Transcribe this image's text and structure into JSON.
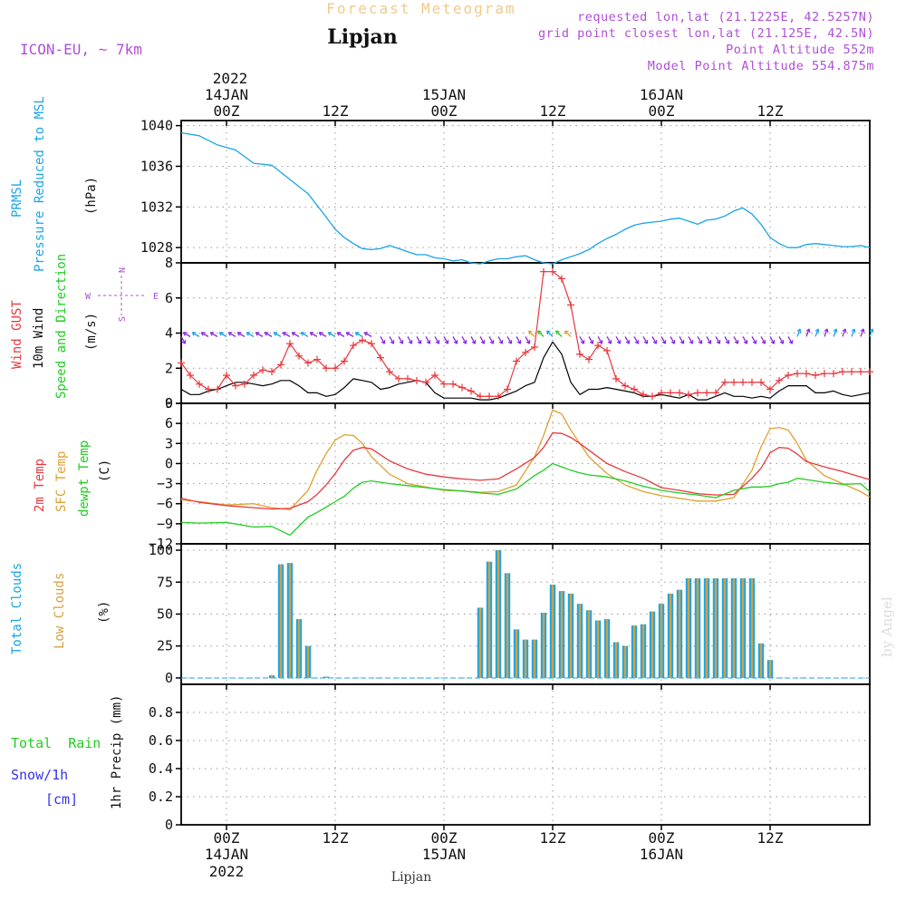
{
  "header": {
    "subtitle": "Forecast Meteogram",
    "station": "Lipjan",
    "model": "ICON-EU, ~ 7km",
    "requested": "requested lon,lat (21.1225E, 42.5257N)",
    "grid_point": "grid point closest lon,lat (21.125E, 42.5N)",
    "point_alt": "Point Altitude 552m",
    "model_alt": "Model Point Altitude 554.875m",
    "footer_station": "Lipjan",
    "watermark": "by Angel"
  },
  "colors": {
    "pressure": "#1aa5e6",
    "gust": "#e8383d",
    "wind": "#000000",
    "barbs_green": "#22cc22",
    "barbs_purple": "#8a2be2",
    "temp2m": "#e8383d",
    "sfc": "#e0a030",
    "dewpt": "#22cc22",
    "total_clouds": "#1aa5e6",
    "low_clouds": "#d4a040",
    "rain": "#22cc22",
    "snow": "#3333ee",
    "dir": "#b04fd8"
  },
  "time_axis": {
    "top_year": "2022",
    "bottom_year": "2022",
    "ticks": [
      {
        "t": 0,
        "label": "00Z",
        "date": "14JAN"
      },
      {
        "t": 12,
        "label": "12Z",
        "date": ""
      },
      {
        "t": 24,
        "label": "00Z",
        "date": "15JAN"
      },
      {
        "t": 36,
        "label": "12Z",
        "date": ""
      },
      {
        "t": 48,
        "label": "00Z",
        "date": "16JAN"
      },
      {
        "t": 60,
        "label": "12Z",
        "date": ""
      }
    ],
    "range_hours": [
      -5,
      71
    ]
  },
  "chart_data": [
    {
      "type": "line",
      "title": "PRMSL Pressure Reduced to MSL",
      "ylabel": "(hPa)",
      "ylim": [
        1026.5,
        1040.5
      ],
      "yticks": [
        1028,
        1032,
        1036,
        1040
      ],
      "series": [
        {
          "name": "PRMSL",
          "x": [
            -5,
            -3,
            -1,
            1,
            3,
            5,
            7,
            9,
            11,
            12,
            13,
            14,
            15,
            16,
            17,
            18,
            19,
            20,
            21,
            22,
            23,
            24,
            25,
            26,
            27,
            28,
            29,
            30,
            31,
            32,
            33,
            34,
            35,
            36,
            37,
            38,
            39,
            40,
            41,
            42,
            43,
            44,
            45,
            46,
            47,
            48,
            49,
            50,
            51,
            52,
            53,
            54,
            55,
            56,
            57,
            58,
            59,
            60,
            61,
            62,
            63,
            64,
            65,
            66,
            67,
            68,
            69,
            70,
            71
          ],
          "values": [
            1039.3,
            1039.0,
            1038.1,
            1037.6,
            1036.3,
            1036.1,
            1034.7,
            1033.3,
            1031.0,
            1029.8,
            1029.0,
            1028.4,
            1027.9,
            1027.8,
            1027.9,
            1028.2,
            1027.9,
            1027.6,
            1027.3,
            1027.3,
            1027.0,
            1026.9,
            1026.7,
            1026.8,
            1026.5,
            1026.4,
            1026.7,
            1026.9,
            1026.9,
            1027.1,
            1027.2,
            1026.8,
            1026.5,
            1026.4,
            1026.8,
            1027.1,
            1027.4,
            1027.8,
            1028.4,
            1028.9,
            1029.3,
            1029.8,
            1030.2,
            1030.4,
            1030.5,
            1030.6,
            1030.8,
            1030.9,
            1030.6,
            1030.3,
            1030.7,
            1030.8,
            1031.1,
            1031.6,
            1031.9,
            1031.3,
            1030.3,
            1029.0,
            1028.4,
            1028.0,
            1028.0,
            1028.3,
            1028.4,
            1028.3,
            1028.2,
            1028.1,
            1028.1,
            1028.2,
            1028.0
          ]
        }
      ]
    },
    {
      "type": "line",
      "title": "Wind GUST / 10m Wind Speed and Direction",
      "ylabel": "(m/s)",
      "ylim": [
        0,
        8
      ],
      "yticks": [
        0,
        2,
        4,
        6,
        8
      ],
      "compass": {
        "n": "N",
        "s": "S",
        "w": "W",
        "e": "E"
      },
      "series": [
        {
          "name": "Wind GUST",
          "x": [
            -5,
            -4,
            -3,
            -2,
            -1,
            0,
            1,
            2,
            3,
            4,
            5,
            6,
            7,
            8,
            9,
            10,
            11,
            12,
            13,
            14,
            15,
            16,
            17,
            18,
            19,
            20,
            21,
            22,
            23,
            24,
            25,
            26,
            27,
            28,
            29,
            30,
            31,
            32,
            33,
            34,
            35,
            36,
            37,
            38,
            39,
            40,
            41,
            42,
            43,
            44,
            45,
            46,
            47,
            48,
            49,
            50,
            51,
            52,
            53,
            54,
            55,
            56,
            57,
            58,
            59,
            60,
            61,
            62,
            63,
            64,
            65,
            66,
            67,
            68,
            69,
            70,
            71
          ],
          "values": [
            2.3,
            1.6,
            1.1,
            0.8,
            0.8,
            1.6,
            1.0,
            1.1,
            1.6,
            1.9,
            1.8,
            2.2,
            3.4,
            2.7,
            2.3,
            2.5,
            2.0,
            2.0,
            2.4,
            3.3,
            3.6,
            3.4,
            2.6,
            1.8,
            1.4,
            1.4,
            1.3,
            1.2,
            1.6,
            1.1,
            1.1,
            0.9,
            0.7,
            0.4,
            0.4,
            0.4,
            0.8,
            2.4,
            2.9,
            3.2,
            7.5,
            7.5,
            7.1,
            5.6,
            2.8,
            2.5,
            3.3,
            3.0,
            1.4,
            1.0,
            0.8,
            0.5,
            0.4,
            0.6,
            0.6,
            0.6,
            0.5,
            0.6,
            0.6,
            0.6,
            1.2,
            1.2,
            1.2,
            1.2,
            1.2,
            0.8,
            1.3,
            1.6,
            1.7,
            1.7,
            1.6,
            1.7,
            1.7,
            1.8,
            1.8,
            1.8,
            1.8
          ]
        },
        {
          "name": "10m Wind",
          "x": [
            -5,
            -4,
            -3,
            -2,
            -1,
            0,
            1,
            2,
            3,
            4,
            5,
            6,
            7,
            8,
            9,
            10,
            11,
            12,
            13,
            14,
            15,
            16,
            17,
            18,
            19,
            20,
            21,
            22,
            23,
            24,
            25,
            26,
            27,
            28,
            29,
            30,
            31,
            32,
            33,
            34,
            35,
            36,
            37,
            38,
            39,
            40,
            41,
            42,
            43,
            44,
            45,
            46,
            47,
            48,
            49,
            50,
            51,
            52,
            53,
            54,
            55,
            56,
            57,
            58,
            59,
            60,
            61,
            62,
            63,
            64,
            65,
            66,
            67,
            68,
            69,
            70,
            71
          ],
          "values": [
            0.8,
            0.5,
            0.5,
            0.7,
            0.8,
            1.0,
            1.2,
            1.2,
            1.1,
            1.0,
            1.1,
            1.3,
            1.3,
            1.0,
            0.6,
            0.6,
            0.4,
            0.5,
            0.9,
            1.4,
            1.3,
            1.2,
            0.8,
            0.9,
            1.1,
            1.2,
            1.3,
            1.2,
            0.6,
            0.3,
            0.3,
            0.3,
            0.3,
            0.2,
            0.2,
            0.3,
            0.5,
            0.7,
            1.0,
            1.2,
            2.6,
            3.5,
            2.8,
            1.2,
            0.5,
            0.8,
            0.8,
            0.9,
            0.8,
            0.7,
            0.6,
            0.4,
            0.4,
            0.5,
            0.4,
            0.3,
            0.5,
            0.2,
            0.2,
            0.4,
            0.6,
            0.4,
            0.4,
            0.3,
            0.4,
            0.3,
            0.7,
            1.0,
            1.0,
            1.0,
            0.6,
            0.6,
            0.7,
            0.5,
            0.4,
            0.5,
            0.6
          ]
        }
      ],
      "barbs_y": 3.8
    },
    {
      "type": "line",
      "title": "2m Temp / SFC Temp / dewpt Temp",
      "ylabel": "(C)",
      "ylim": [
        -12,
        9
      ],
      "yticks": [
        -12,
        -9,
        -6,
        -3,
        0,
        3,
        6,
        9
      ],
      "series": [
        {
          "name": "2m Temp",
          "x": [
            -5,
            -3,
            0,
            3,
            5,
            7,
            9,
            10,
            11,
            12,
            13,
            14,
            15,
            16,
            18,
            20,
            22,
            24,
            26,
            28,
            30,
            32,
            34,
            35,
            36,
            37,
            38,
            39,
            40,
            42,
            44,
            46,
            48,
            50,
            52,
            54,
            56,
            58,
            59,
            60,
            61,
            62,
            63,
            64,
            66,
            68,
            70,
            71
          ],
          "values": [
            -5.2,
            -5.8,
            -6.3,
            -6.6,
            -6.8,
            -6.7,
            -5.7,
            -4.6,
            -3.2,
            -1.5,
            0.5,
            2.0,
            2.4,
            2.2,
            0.4,
            -0.8,
            -1.6,
            -2.0,
            -2.3,
            -2.5,
            -2.3,
            -0.8,
            0.9,
            2.4,
            4.6,
            4.5,
            3.9,
            3.0,
            2.0,
            0.0,
            -1.2,
            -2.2,
            -3.6,
            -4.0,
            -4.5,
            -4.7,
            -4.6,
            -2.2,
            -0.7,
            1.6,
            2.4,
            2.3,
            1.4,
            0.3,
            -0.5,
            -1.2,
            -2.0,
            -2.4
          ]
        },
        {
          "name": "SFC Temp",
          "x": [
            -5,
            -3,
            0,
            3,
            5,
            7,
            9,
            10,
            11,
            12,
            13,
            14,
            15,
            16,
            18,
            20,
            22,
            24,
            26,
            28,
            30,
            32,
            34,
            35,
            36,
            37,
            38,
            39,
            40,
            42,
            44,
            46,
            48,
            50,
            52,
            54,
            56,
            58,
            59,
            60,
            61,
            62,
            63,
            64,
            66,
            68,
            70,
            71
          ],
          "values": [
            -5.4,
            -5.7,
            -6.2,
            -6.0,
            -6.6,
            -6.9,
            -4.0,
            -1.0,
            1.5,
            3.5,
            4.3,
            4.2,
            3.0,
            1.0,
            -1.6,
            -3.0,
            -3.5,
            -4.0,
            -4.1,
            -4.3,
            -4.2,
            -3.2,
            1.0,
            4.2,
            8.0,
            7.4,
            5.0,
            3.0,
            1.0,
            -1.5,
            -3.2,
            -4.2,
            -4.8,
            -5.2,
            -5.6,
            -5.6,
            -5.1,
            -1.0,
            2.5,
            5.2,
            5.4,
            5.0,
            3.0,
            0.5,
            -1.8,
            -3.0,
            -4.2,
            -5.0
          ]
        },
        {
          "name": "dewpt Temp",
          "x": [
            -5,
            -3,
            0,
            3,
            5,
            7,
            9,
            10,
            11,
            12,
            13,
            14,
            15,
            16,
            18,
            20,
            22,
            24,
            26,
            28,
            30,
            32,
            34,
            35,
            36,
            37,
            38,
            39,
            40,
            42,
            44,
            46,
            48,
            50,
            52,
            54,
            56,
            58,
            59,
            60,
            61,
            62,
            63,
            64,
            66,
            68,
            70,
            71
          ],
          "values": [
            -8.8,
            -8.9,
            -8.8,
            -9.5,
            -9.4,
            -10.7,
            -8.0,
            -7.3,
            -6.5,
            -5.7,
            -4.9,
            -3.7,
            -2.8,
            -2.6,
            -3.0,
            -3.3,
            -3.6,
            -3.9,
            -4.1,
            -4.4,
            -4.6,
            -3.8,
            -1.8,
            -1.0,
            0.0,
            -0.5,
            -1.0,
            -1.4,
            -1.7,
            -2.0,
            -2.6,
            -3.4,
            -4.0,
            -4.4,
            -4.7,
            -5.1,
            -4.0,
            -3.5,
            -3.5,
            -3.4,
            -3.0,
            -2.8,
            -2.2,
            -2.4,
            -2.8,
            -3.1,
            -3.0,
            -4.2
          ]
        }
      ]
    },
    {
      "type": "bar",
      "title": "Total Clouds / Low Clouds",
      "ylabel": "(%)",
      "ylim": [
        -5,
        105
      ],
      "yticks": [
        0,
        25,
        50,
        75,
        100
      ],
      "x": [
        5,
        6,
        7,
        8,
        9,
        10,
        11,
        12,
        13,
        14,
        15,
        16,
        17,
        18,
        19,
        20,
        21,
        22,
        23,
        24,
        25,
        26,
        27,
        28,
        29,
        30,
        31,
        32,
        33,
        34,
        35,
        36,
        37,
        38,
        39,
        40,
        41,
        42,
        43,
        44,
        45,
        46,
        47,
        48,
        49,
        50,
        51,
        52,
        53,
        54,
        55,
        56,
        57,
        58,
        59,
        60,
        61,
        62
      ],
      "series": [
        {
          "name": "Total Clouds",
          "values": [
            2,
            89,
            90,
            46,
            25,
            0,
            1,
            0,
            0,
            0,
            0,
            0,
            0,
            0,
            0,
            0,
            0,
            0,
            0,
            0,
            0,
            0,
            0,
            55,
            91,
            100,
            82,
            38,
            30,
            30,
            51,
            73,
            68,
            66,
            58,
            53,
            45,
            46,
            28,
            25,
            41,
            42,
            52,
            58,
            66,
            69,
            78,
            78,
            78,
            78,
            78,
            78,
            78,
            78,
            27,
            14,
            0,
            0
          ]
        },
        {
          "name": "Low Clouds",
          "values": [
            2,
            89,
            90,
            46,
            25,
            0,
            1,
            0,
            0,
            0,
            0,
            0,
            0,
            0,
            0,
            0,
            0,
            0,
            0,
            0,
            0,
            0,
            0,
            55,
            91,
            100,
            82,
            38,
            30,
            30,
            51,
            73,
            68,
            66,
            58,
            53,
            45,
            46,
            28,
            25,
            41,
            42,
            52,
            58,
            66,
            69,
            78,
            78,
            78,
            78,
            78,
            78,
            78,
            78,
            27,
            14,
            0,
            0
          ]
        }
      ]
    },
    {
      "type": "line",
      "title": "1hr Precip",
      "ylabel": "1hr Precip (mm)",
      "ylim": [
        0,
        1.0
      ],
      "yticks": [
        0,
        0.2,
        0.4,
        0.6,
        0.8
      ],
      "series": [
        {
          "name": "Total Rain",
          "values": []
        },
        {
          "name": "Snow/1h [cm]",
          "values": []
        }
      ]
    }
  ],
  "panel_labels": {
    "p1": {
      "line1": "PRMSL",
      "line2": "Pressure Reduced to MSL",
      "unit": "(hPa)"
    },
    "p2": {
      "line1": "Wind GUST",
      "line2": "10m Wind",
      "line3": "Speed and Direction",
      "unit": "(m/s)"
    },
    "p3": {
      "line1": "2m Temp",
      "line2": "SFC Temp",
      "line3": "dewpt Temp",
      "unit": "(C)"
    },
    "p4": {
      "line1": "Total Clouds",
      "line2": "Low Clouds",
      "unit": "(%)"
    },
    "p5": {
      "rain": "Total  Rain",
      "snow": "Snow/1h",
      "snow_unit": "[cm]",
      "unit": "1hr Precip (mm)"
    }
  }
}
